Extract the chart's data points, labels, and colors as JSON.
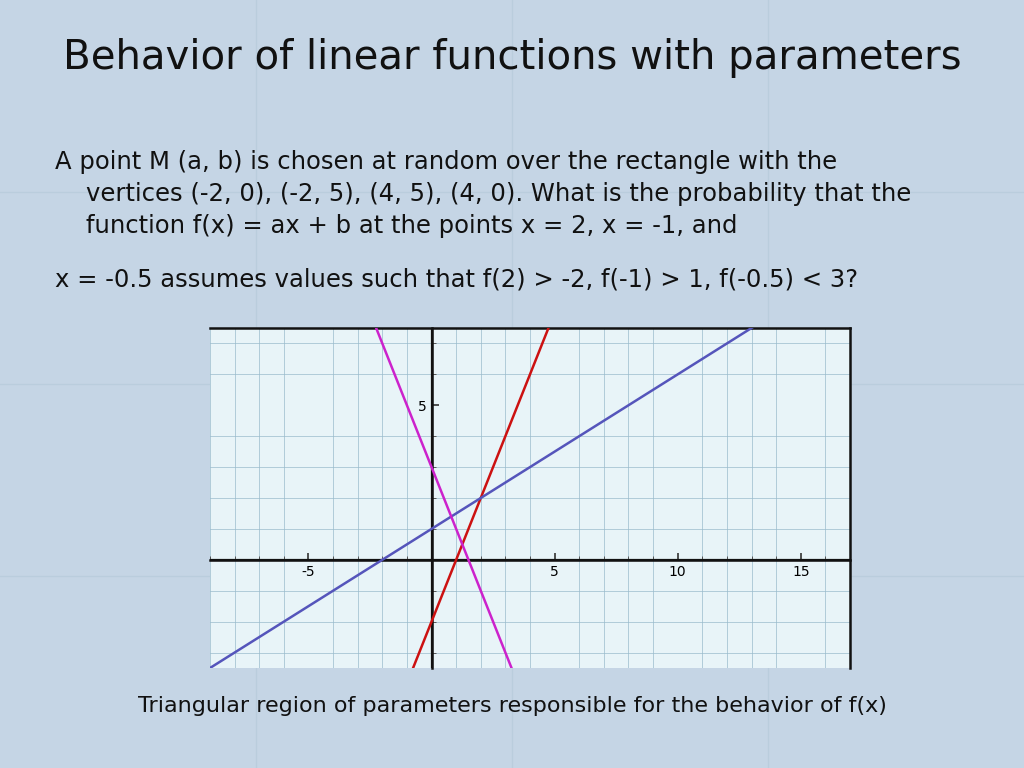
{
  "title": "Behavior of linear functions with parameters",
  "title_fontsize": 29,
  "slide_bg": "#c5d5e5",
  "body_fontsize": 17.5,
  "caption_fontsize": 16,
  "text_color": "#111111",
  "graph_bg": "#e8f4f8",
  "graph_border_color": "#111111",
  "grid_color": "#99bbcc",
  "line_red_color": "#cc1111",
  "line_blue_color": "#5555bb",
  "line_magenta_color": "#cc22cc",
  "line_width": 1.8,
  "graph_xlim": [
    -9,
    17
  ],
  "graph_ylim": [
    -3.5,
    7.5
  ],
  "graph_xticks": [
    -5,
    5,
    10,
    15
  ],
  "graph_yticks": [
    5
  ],
  "red_slope": 2.0,
  "red_intercept": -2.0,
  "blue_slope": 0.5,
  "blue_intercept": 1.0,
  "magenta_slope": -2.0,
  "magenta_intercept": 3.0,
  "tile_color": "#a8c0d0",
  "tile_alpha": 0.35,
  "body_line1": "A point M (a, b) is chosen at random over the rectangle with the",
  "body_line2": "    vertices (-2, 0), (-2, 5), (4, 5), (4, 0). What is the probability that the",
  "body_line3": "    function f(x) = ax + b at the points x = 2, x = -1, and",
  "body_line4": "x = -0.5 assumes values such that f(2) > -2, f(-1) > 1, f(-0.5) < 3?",
  "caption": "Triangular region of parameters responsible for the behavior of f(x)"
}
